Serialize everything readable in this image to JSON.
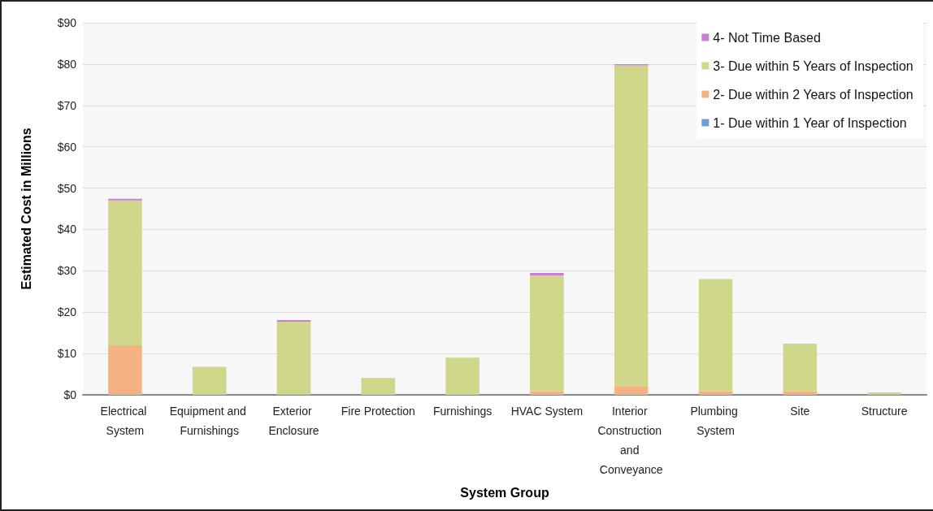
{
  "chart_data": {
    "type": "bar",
    "stacked": true,
    "xlabel": "System Group",
    "ylabel": "Estimated Cost in Millions",
    "categories": [
      "Electrical System",
      "Equipment and Furnishings",
      "Exterior Enclosure",
      "Fire Protection",
      "Furnishings",
      "HVAC System",
      "Interior Construction and Conveyance",
      "Plumbing System",
      "Site",
      "Structure"
    ],
    "series": [
      {
        "name": "1- Due within 1 Year of Inspection",
        "color": "#6a9fd4",
        "values": [
          0,
          0,
          0,
          0,
          0,
          0,
          0,
          0,
          0,
          0
        ]
      },
      {
        "name": "2- Due within 2 Years of Inspection",
        "color": "#f4b183",
        "values": [
          12,
          0,
          0.2,
          0,
          0,
          0.9,
          2.1,
          0.9,
          0.9,
          0.2
        ]
      },
      {
        "name": "3- Due within 5 Years of Inspection",
        "color": "#d0d68a",
        "values": [
          35,
          6.8,
          17.5,
          4.1,
          9,
          28,
          77.6,
          27.1,
          11.5,
          0.4
        ]
      },
      {
        "name": "4- Not Time Based",
        "color": "#c97fcf",
        "values": [
          0.4,
          0,
          0.4,
          0,
          0,
          0.6,
          0.3,
          0,
          0,
          0
        ]
      }
    ],
    "ylim": [
      0,
      90
    ],
    "yticks": [
      {
        "value": 0,
        "label": "$0"
      },
      {
        "value": 10,
        "label": "$10"
      },
      {
        "value": 20,
        "label": "$20"
      },
      {
        "value": 30,
        "label": "$30"
      },
      {
        "value": 40,
        "label": "$40"
      },
      {
        "value": 50,
        "label": "$50"
      },
      {
        "value": 60,
        "label": "$60"
      },
      {
        "value": 70,
        "label": "$70"
      },
      {
        "value": 80,
        "label": "$80"
      },
      {
        "value": 90,
        "label": "$90"
      }
    ],
    "grid": "y",
    "legend": "top right"
  }
}
